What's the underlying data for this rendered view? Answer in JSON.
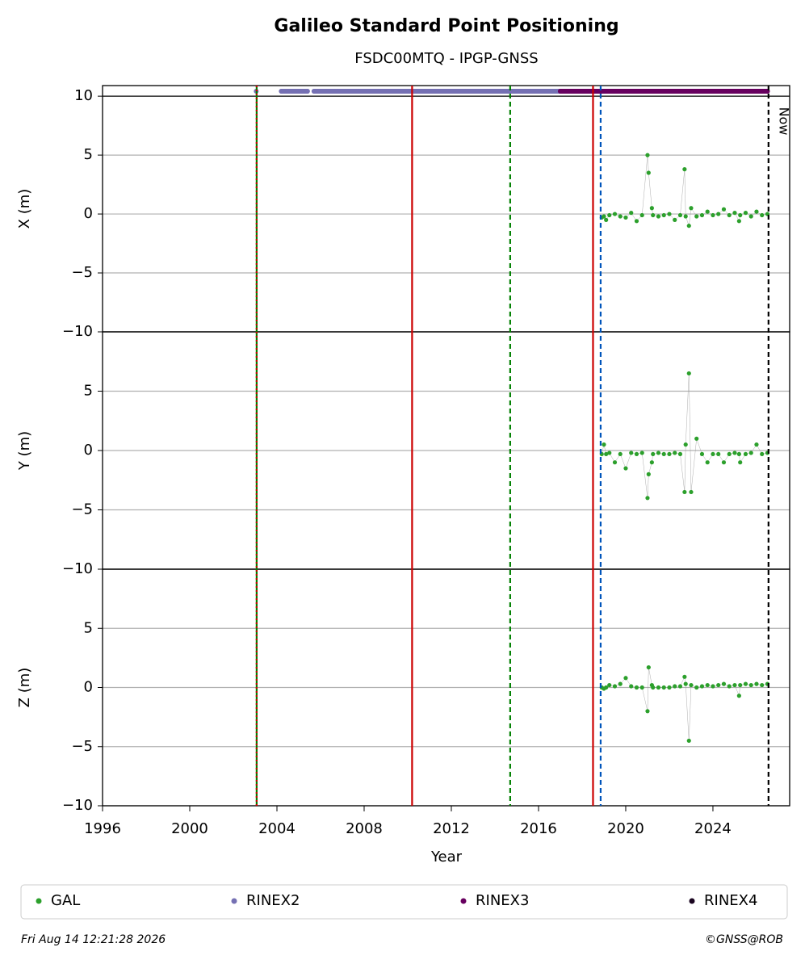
{
  "chart_data": {
    "type": "scatter",
    "title": "Galileo Standard Point Positioning",
    "subtitle": "FSDC00MTQ - IPGP-GNSS",
    "xlabel": "Year",
    "xlim": [
      1996,
      2027.52
    ],
    "xticks": [
      1996,
      2000,
      2004,
      2008,
      2012,
      2016,
      2020,
      2024
    ],
    "grid": true,
    "legend": "bottom",
    "x": [
      2018.9,
      2019.0,
      2019.1,
      2019.25,
      2019.5,
      2019.75,
      2020.0,
      2020.25,
      2020.5,
      2020.75,
      2021.0,
      2021.05,
      2021.2,
      2021.25,
      2021.5,
      2021.75,
      2022.0,
      2022.25,
      2022.5,
      2022.7,
      2022.75,
      2022.9,
      2023.0,
      2023.25,
      2023.5,
      2023.75,
      2024.0,
      2024.25,
      2024.5,
      2024.75,
      2025.0,
      2025.2,
      2025.25,
      2025.5,
      2025.75,
      2026.0,
      2026.25,
      2026.5
    ],
    "panels": [
      {
        "ylabel": "X (m)",
        "ylim": [
          -10,
          10.9
        ],
        "yticks": [
          {
            "value": -10,
            "label": "−10"
          },
          {
            "value": -5,
            "label": "−5"
          },
          0,
          5,
          10
        ],
        "series": [
          {
            "name": "GAL",
            "color": "#2ca02c",
            "values": [
              -0.3,
              -0.2,
              -0.5,
              -0.1,
              0,
              -0.2,
              -0.3,
              0.1,
              -0.6,
              -0.1,
              5.0,
              3.5,
              0.5,
              -0.1,
              -0.2,
              -0.1,
              0,
              -0.5,
              -0.1,
              3.8,
              -0.2,
              -1.0,
              0.5,
              -0.2,
              -0.1,
              0.2,
              -0.1,
              0,
              0.4,
              -0.1,
              0.1,
              -0.6,
              -0.1,
              0.1,
              -0.2,
              0.2,
              -0.1,
              0
            ]
          }
        ]
      },
      {
        "ylabel": "Y (m)",
        "ylim": [
          -10,
          10
        ],
        "yticks": [
          {
            "value": -10,
            "label": "−10"
          },
          {
            "value": -5,
            "label": "−5"
          },
          0,
          5
        ],
        "series": [
          {
            "name": "GAL",
            "color": "#2ca02c",
            "values": [
              -0.3,
              0.5,
              -0.3,
              -0.2,
              -1.0,
              -0.3,
              -1.5,
              -0.2,
              -0.3,
              -0.2,
              -4.0,
              -2.0,
              -1.0,
              -0.3,
              -0.2,
              -0.3,
              -0.3,
              -0.2,
              -0.3,
              -3.5,
              0.5,
              6.5,
              -3.5,
              1.0,
              -0.3,
              -1.0,
              -0.3,
              -0.3,
              -1.0,
              -0.3,
              -0.2,
              -0.3,
              -1.0,
              -0.3,
              -0.2,
              0.5,
              -0.3,
              -0.2
            ]
          }
        ]
      },
      {
        "ylabel": "Z (m)",
        "ylim": [
          -10,
          10
        ],
        "yticks": [
          {
            "value": -10,
            "label": "−10"
          },
          {
            "value": -5,
            "label": "−5"
          },
          0,
          5
        ],
        "series": [
          {
            "name": "GAL",
            "color": "#2ca02c",
            "values": [
              0,
              -0.1,
              0,
              0.2,
              0.1,
              0.3,
              0.8,
              0.1,
              0,
              0,
              -2.0,
              1.7,
              0.2,
              0,
              0,
              0,
              0,
              0.1,
              0.1,
              0.9,
              0.3,
              -4.5,
              0.2,
              0,
              0.1,
              0.2,
              0.1,
              0.2,
              0.3,
              0.1,
              0.2,
              -0.7,
              0.2,
              0.3,
              0.2,
              0.3,
              0.2,
              0.3
            ]
          }
        ]
      }
    ],
    "availability": [
      {
        "name": "RINEX2",
        "color": "#7570b3",
        "x": [
          2003.05,
          null,
          2004.2,
          2004.5,
          2004.8,
          2005.1,
          2005.4,
          null,
          2005.7,
          2006.2,
          2006.7,
          2007.2,
          2007.7,
          2008.2,
          2008.7,
          2009.2,
          2009.7,
          2010.2,
          2010.7,
          2011.2,
          2011.7,
          2012.2,
          2012.7,
          2013.2,
          2013.7,
          2014.2,
          2014.7,
          2015.2,
          2015.7,
          2016.2,
          2016.7,
          2017.0
        ]
      },
      {
        "name": "RINEX3",
        "color": "#67005f",
        "x": [
          2017.0,
          2017.5,
          2018.0,
          2018.5,
          2019.0,
          2019.5,
          2020.0,
          2020.5,
          2021.0,
          2021.5,
          2022.0,
          2022.5,
          2023.0,
          2023.5,
          2024.0,
          2024.5,
          2025.0,
          2025.5,
          2026.0,
          2026.5
        ]
      },
      {
        "name": "RINEX4",
        "color": "#1a0520",
        "x": []
      }
    ],
    "events": [
      {
        "x": 2003.07,
        "color": "#008000",
        "style": "solid"
      },
      {
        "x": 2003.07,
        "color": "#cc0000",
        "style": "dotted"
      },
      {
        "x": 2010.2,
        "color": "#cc0000",
        "style": "solid"
      },
      {
        "x": 2014.7,
        "color": "#008000",
        "style": "dashed"
      },
      {
        "x": 2018.5,
        "color": "#cc0000",
        "style": "solid"
      },
      {
        "x": 2018.85,
        "color": "#0055bb",
        "style": "dashed"
      },
      {
        "x": 2026.55,
        "color": "#000000",
        "style": "dashed",
        "label": "Now"
      }
    ],
    "timestamp": "Fri Aug 14 12:21:28 2026",
    "credit": "©GNSS@ROB"
  }
}
